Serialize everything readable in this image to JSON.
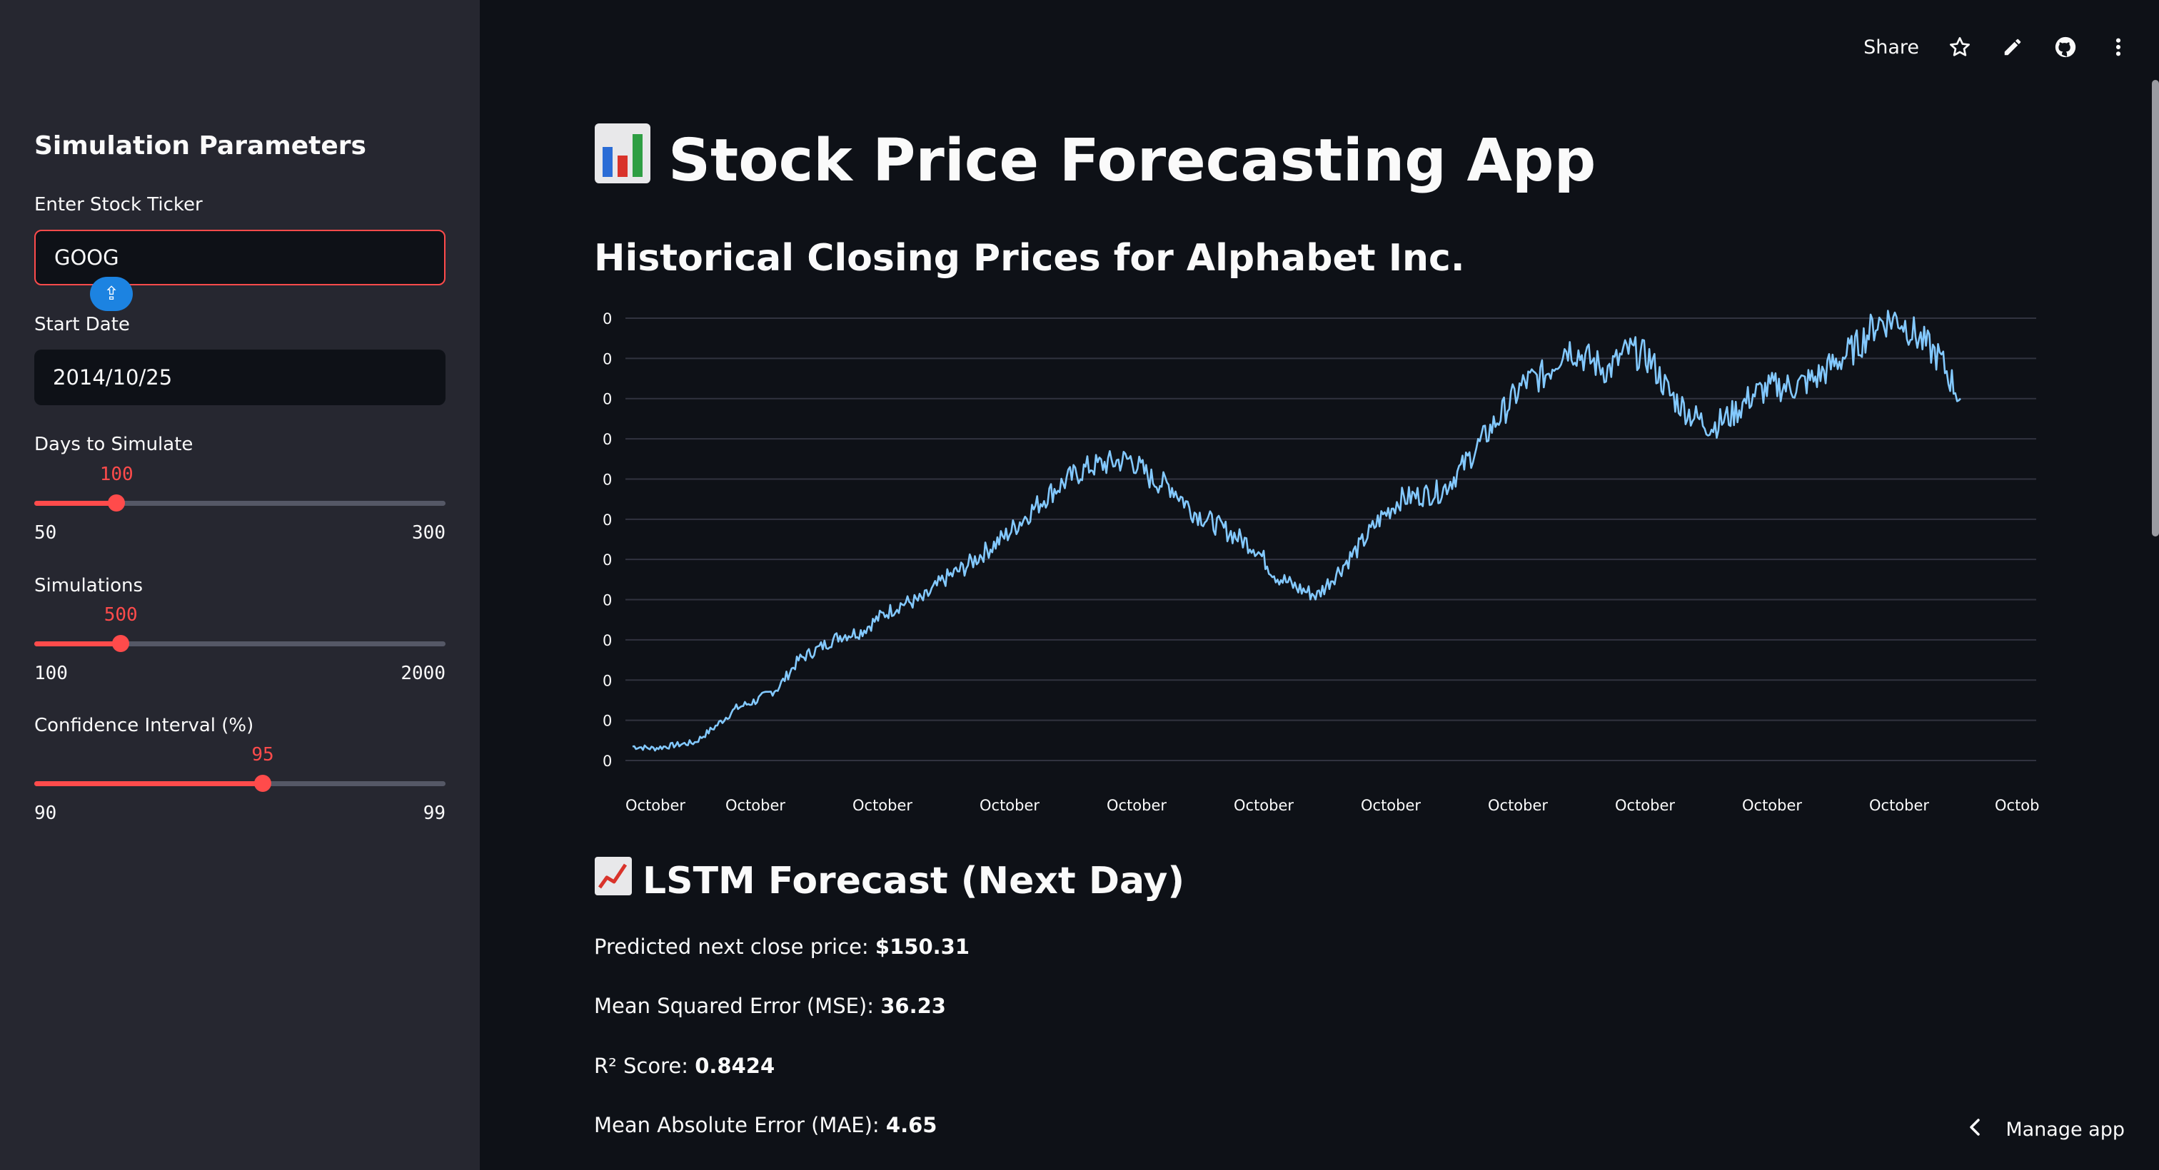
{
  "sidebar": {
    "title": "Simulation Parameters",
    "ticker": {
      "label": "Enter Stock Ticker",
      "value": "GOOG"
    },
    "start_date": {
      "label": "Start Date",
      "value": "2014/10/25"
    },
    "days": {
      "label": "Days to Simulate",
      "value": "100",
      "min": "50",
      "max": "300",
      "fraction": 0.2
    },
    "sims": {
      "label": "Simulations",
      "value": "500",
      "min": "100",
      "max": "2000",
      "fraction": 0.2105
    },
    "ci": {
      "label": "Confidence Interval (%)",
      "value": "95",
      "min": "90",
      "max": "99",
      "fraction": 0.5556
    }
  },
  "toolbar": {
    "share_label": "Share"
  },
  "main": {
    "title": "Stock Price Forecasting App",
    "title_icon": "bar-chart-emoji",
    "chart_heading": "Historical Closing Prices for Alphabet Inc.",
    "forecast_heading": "LSTM Forecast (Next Day)",
    "forecast_icon": "trend-up-emoji",
    "metrics": [
      {
        "label": "Predicted next close price: ",
        "value": "$150.31"
      },
      {
        "label": "Mean Squared Error (MSE): ",
        "value": "36.23"
      },
      {
        "label": "R² Score: ",
        "value": "0.8424"
      },
      {
        "label": "Mean Absolute Error (MAE): ",
        "value": "4.65"
      }
    ]
  },
  "footer": {
    "manage_label": "Manage app"
  },
  "colors": {
    "accent": "#ff4b4b",
    "line": "#83c9ff",
    "bg": "#0e1117",
    "sidebar": "#262730"
  },
  "chart_data": {
    "type": "line",
    "title": "",
    "xlabel": "",
    "ylabel": "",
    "y_tick_labels": [
      "0",
      "0",
      "0",
      "0",
      "0",
      "0",
      "0",
      "0",
      "0",
      "0",
      "0",
      "0"
    ],
    "x_tick_labels": [
      "October",
      "October",
      "October",
      "October",
      "October",
      "October",
      "October",
      "October",
      "October",
      "October",
      "October",
      "Octob"
    ],
    "ylim": [
      0,
      11
    ],
    "grid": true,
    "series": [
      {
        "values": [
          0.35,
          0.3,
          0.38,
          0.45,
          0.85,
          1.3,
          1.5,
          1.8,
          2.5,
          2.8,
          3.1,
          3.2,
          3.6,
          3.9,
          4.0,
          4.5,
          4.8,
          5.2,
          5.6,
          6.1,
          6.6,
          7.0,
          7.3,
          7.4,
          7.5,
          7.0,
          6.8,
          6.2,
          5.9,
          5.6,
          5.3,
          4.6,
          4.3,
          4.1,
          4.7,
          5.3,
          6.0,
          6.5,
          6.6,
          6.7,
          7.3,
          8.0,
          8.7,
          9.4,
          9.6,
          10.3,
          10.0,
          9.7,
          10.2,
          10.0,
          9.1,
          8.6,
          8.3,
          8.6,
          9.1,
          9.3,
          9.3,
          9.5,
          9.9,
          10.3,
          10.9,
          11.0,
          10.5,
          10.0,
          9.0
        ]
      }
    ]
  }
}
